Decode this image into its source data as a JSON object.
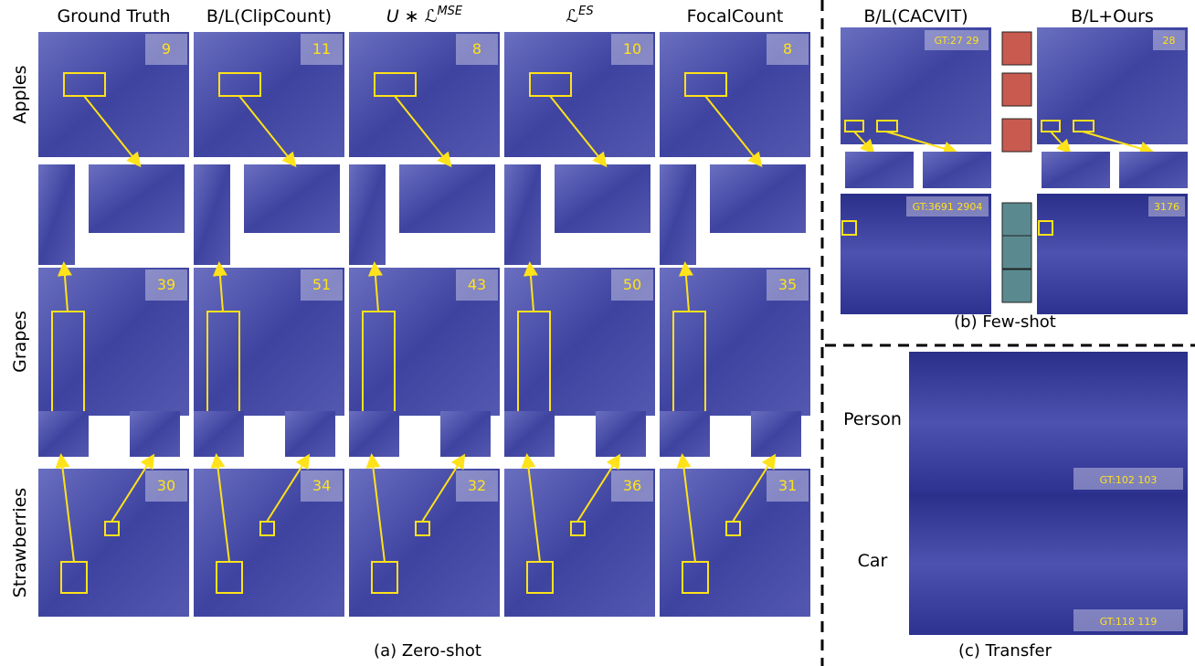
{
  "zero_shot": {
    "columns": [
      {
        "text": "Ground Truth"
      },
      {
        "text": "B/L(ClipCount)"
      },
      {
        "text": "U ∗ ℒ",
        "sup": "MSE"
      },
      {
        "text": "ℒ",
        "sup": "ES"
      },
      {
        "text": "FocalCount"
      }
    ],
    "rows": [
      {
        "label": "Apples",
        "counts": [
          9,
          11,
          8,
          10,
          8
        ]
      },
      {
        "label": "Grapes",
        "counts": [
          39,
          51,
          43,
          50,
          35
        ]
      },
      {
        "label": "Strawberries",
        "counts": [
          30,
          34,
          32,
          36,
          31
        ]
      }
    ],
    "caption": "(a) Zero-shot"
  },
  "few_shot": {
    "columns": [
      "B/L(CACVIT)",
      "B/L+Ours"
    ],
    "rows": [
      {
        "counts": [
          "GT:27 29",
          "28"
        ]
      },
      {
        "counts": [
          "GT:3691  2904",
          "3176"
        ]
      }
    ],
    "caption": "(b) Few-shot"
  },
  "transfer": {
    "rows": [
      {
        "label": "Person",
        "count": "GT:102  103"
      },
      {
        "label": "Car",
        "count": "GT:118  119"
      }
    ],
    "caption": "(c) Transfer"
  }
}
